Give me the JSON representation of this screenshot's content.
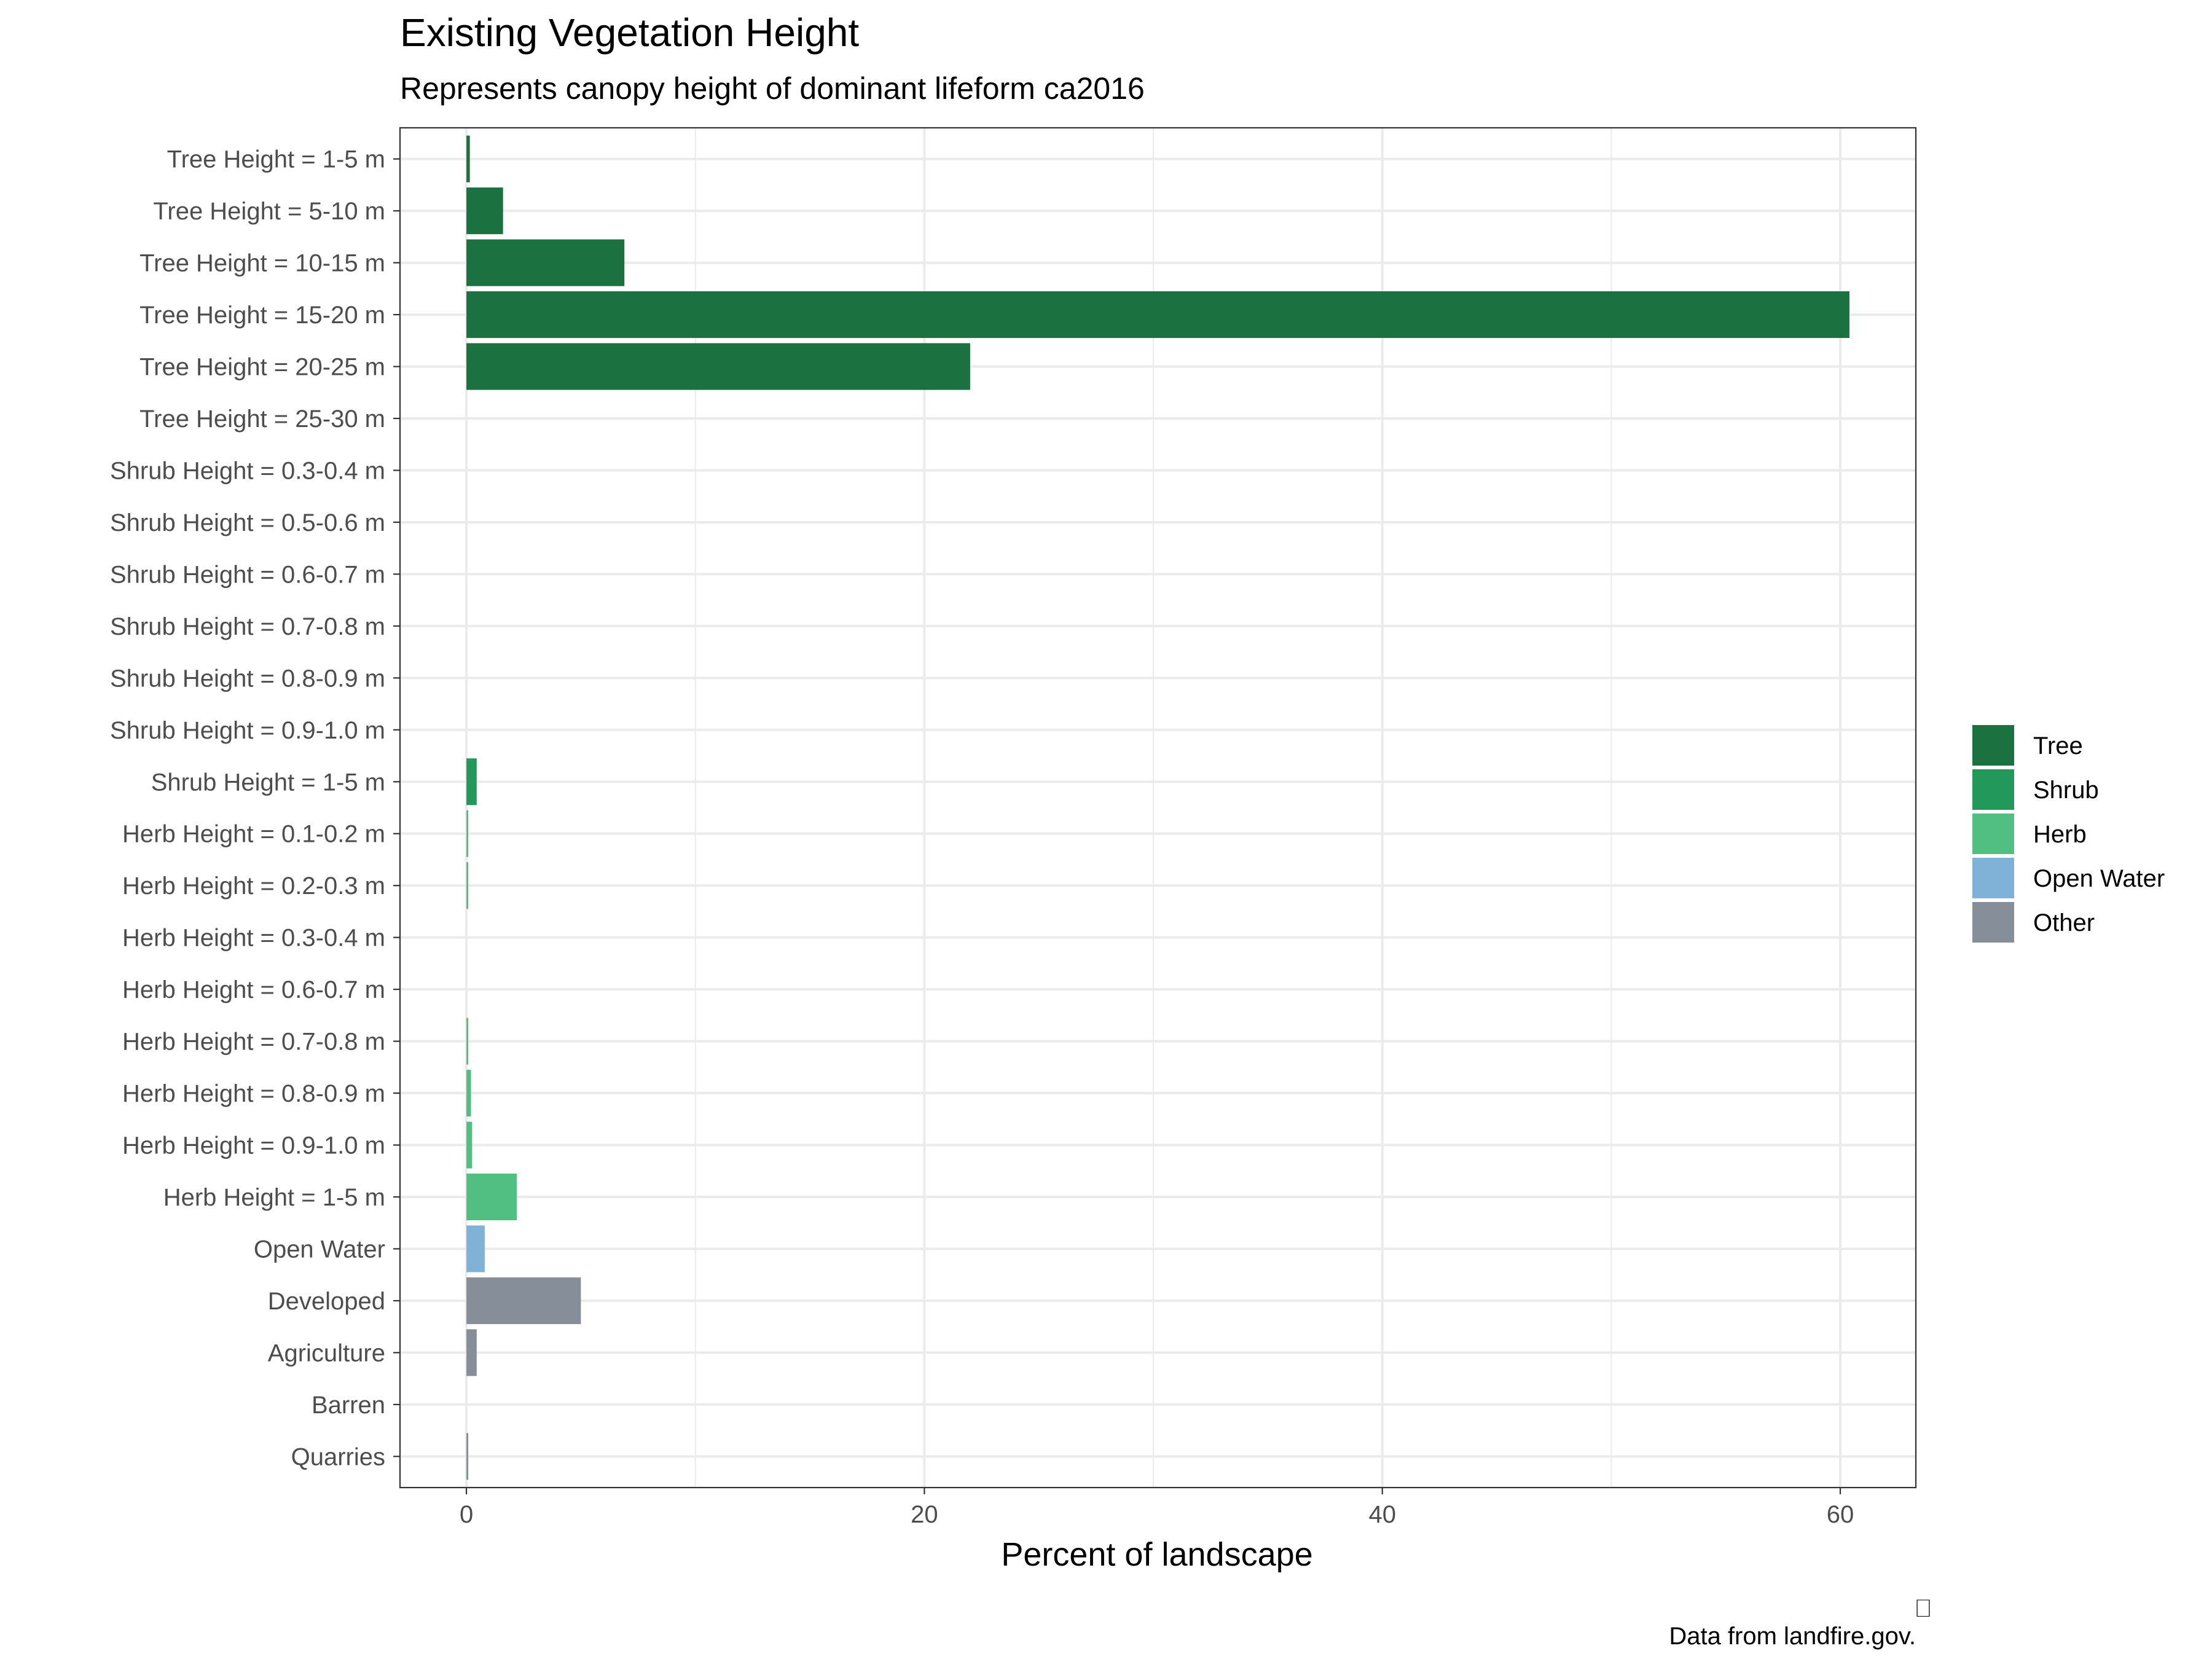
{
  "chart_data": {
    "type": "bar",
    "orientation": "horizontal",
    "title": "Existing Vegetation Height",
    "subtitle": "Represents canopy height of dominant lifeform ca2016",
    "xlabel": "Percent of landscape",
    "ylabel": "",
    "xlim": [
      -2.9,
      63.3
    ],
    "xticks": [
      0,
      20,
      40,
      60
    ],
    "grid": true,
    "legend_position": "right",
    "caption": "Data from landfire.gov.",
    "caption_mark": "⎕",
    "legend": [
      {
        "name": "Tree",
        "color": "#1b7140"
      },
      {
        "name": "Shrub",
        "color": "#22995a"
      },
      {
        "name": "Herb",
        "color": "#52bf82"
      },
      {
        "name": "Open Water",
        "color": "#7fb2d6"
      },
      {
        "name": "Other",
        "color": "#858e99"
      }
    ],
    "categories": [
      "Tree Height = 1-5 m",
      "Tree Height = 5-10 m",
      "Tree Height = 10-15 m",
      "Tree Height = 15-20 m",
      "Tree Height = 20-25 m",
      "Tree Height = 25-30 m",
      "Shrub Height = 0.3-0.4 m",
      "Shrub Height = 0.5-0.6 m",
      "Shrub Height = 0.6-0.7 m",
      "Shrub Height = 0.7-0.8 m",
      "Shrub Height = 0.8-0.9 m",
      "Shrub Height = 0.9-1.0 m",
      "Shrub Height = 1-5 m",
      "Herb Height = 0.1-0.2 m",
      "Herb Height = 0.2-0.3 m",
      "Herb Height = 0.3-0.4 m",
      "Herb Height = 0.6-0.7 m",
      "Herb Height = 0.7-0.8 m",
      "Herb Height = 0.8-0.9 m",
      "Herb Height = 0.9-1.0 m",
      "Herb Height = 1-5 m",
      "Open Water",
      "Developed",
      "Agriculture",
      "Barren",
      "Quarries"
    ],
    "values": [
      0.15,
      1.6,
      6.9,
      60.4,
      22.0,
      0.0,
      0.0,
      0.0,
      0.0,
      0.0,
      0.0,
      0.0,
      0.45,
      0.08,
      0.08,
      0.0,
      0.0,
      0.08,
      0.2,
      0.25,
      2.2,
      0.8,
      5.0,
      0.45,
      0.0,
      0.08
    ],
    "groups": [
      "Tree",
      "Tree",
      "Tree",
      "Tree",
      "Tree",
      "Tree",
      "Shrub",
      "Shrub",
      "Shrub",
      "Shrub",
      "Shrub",
      "Shrub",
      "Shrub",
      "Herb",
      "Herb",
      "Herb",
      "Herb",
      "Herb",
      "Herb",
      "Herb",
      "Herb",
      "Open Water",
      "Other",
      "Other",
      "Other",
      "Other"
    ]
  }
}
